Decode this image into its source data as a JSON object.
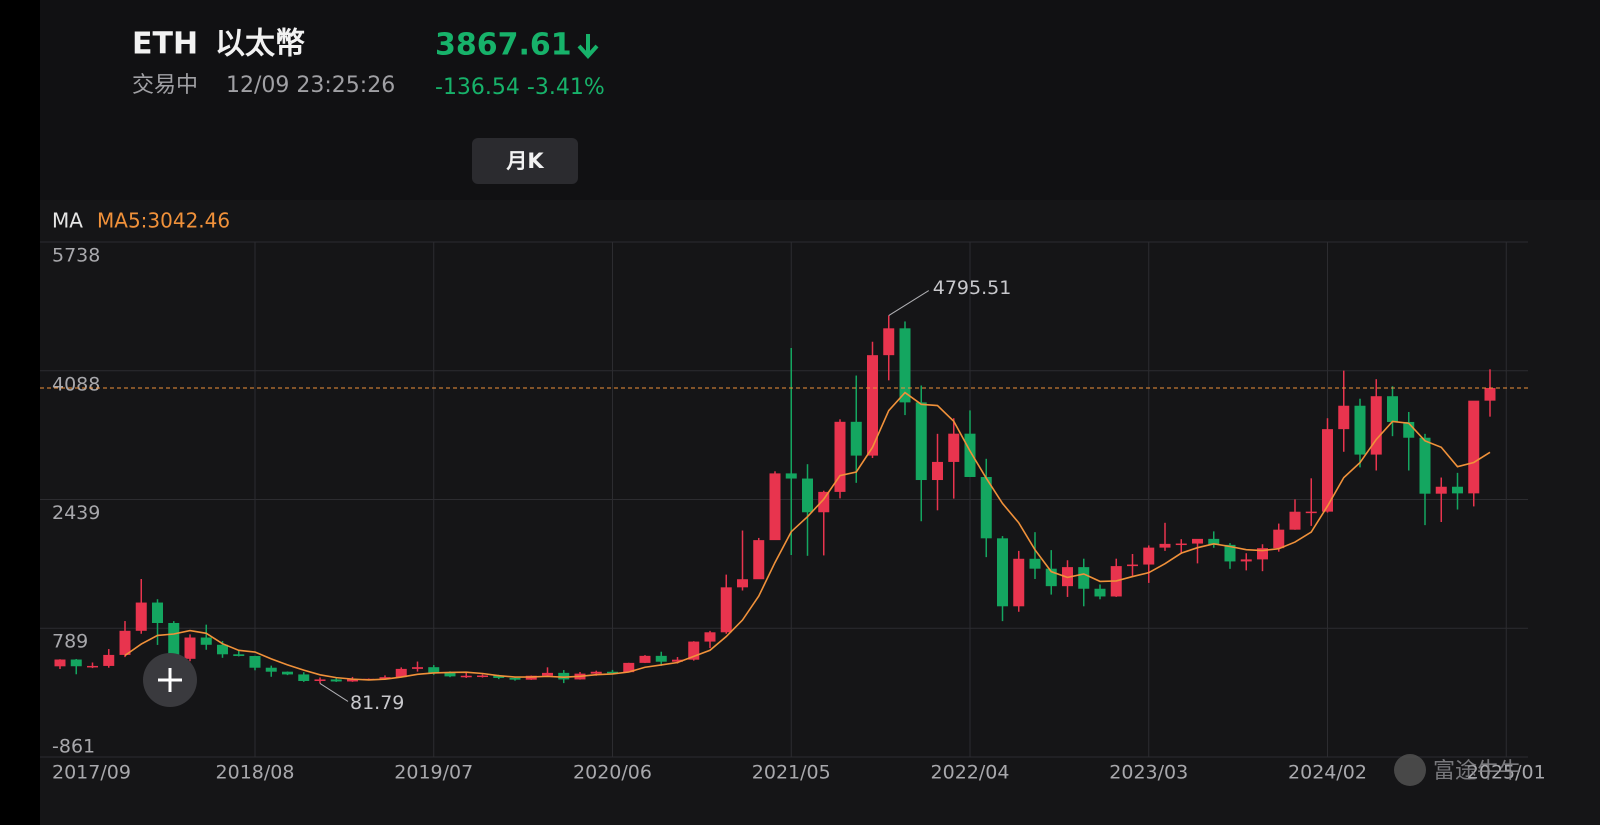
{
  "header": {
    "symbol": "ETH",
    "name": "以太幣",
    "status": "交易中",
    "time": "12/09 23:25:26",
    "change": "-136.54 -3.41%",
    "period_button": "月K",
    "watermark": "富途牛牛"
  },
  "chart_data": {
    "type": "candlestick",
    "indicator": "MA",
    "ma_legend": "MA5:3042.46",
    "up_color": "#e8344e",
    "down_color": "#14a660",
    "grid": true,
    "ylim": [
      -861,
      5738
    ],
    "yticks": [
      -861,
      789,
      2439,
      4088,
      5738
    ],
    "categories": [
      null,
      "2017/09",
      null,
      null,
      null,
      null,
      null,
      null,
      null,
      null,
      null,
      null,
      "2018/08",
      null,
      null,
      null,
      null,
      null,
      null,
      null,
      null,
      null,
      null,
      "2019/07",
      null,
      null,
      null,
      null,
      null,
      null,
      null,
      null,
      null,
      null,
      "2020/06",
      null,
      null,
      null,
      null,
      null,
      null,
      null,
      null,
      null,
      null,
      "2021/05",
      null,
      null,
      null,
      null,
      null,
      null,
      null,
      null,
      null,
      null,
      "2022/04",
      null,
      null,
      null,
      null,
      null,
      null,
      null,
      null,
      null,
      null,
      "2023/03",
      null,
      null,
      null,
      null,
      null,
      null,
      null,
      null,
      null,
      null,
      "2024/02",
      null,
      null,
      null,
      null,
      null,
      null,
      null,
      null,
      null,
      null,
      "2025/01"
    ],
    "open": [
      301,
      388,
      302,
      306,
      447,
      756,
      1118,
      856,
      397,
      670,
      577,
      455,
      433,
      283,
      232,
      197,
      113,
      133,
      107,
      136,
      141,
      162,
      268,
      290,
      218,
      172,
      180,
      183,
      152,
      130,
      180,
      217,
      133,
      207,
      231,
      226,
      345,
      435,
      360,
      386,
      618,
      737,
      1313,
      1417,
      1918,
      2773,
      2707,
      2275,
      2536,
      3434,
      3001,
      4288,
      4632,
      3683,
      2688,
      2920,
      3282,
      2727,
      1941,
      1070,
      1679,
      1552,
      1328,
      1572,
      1295,
      1196,
      1585,
      1605,
      1822,
      1870,
      1874,
      1934,
      1857,
      1645,
      1671,
      1815,
      2052,
      2282,
      2283,
      3340,
      3640,
      3014,
      3762,
      3432,
      3230,
      2513,
      2602,
      2517,
      3705,
      null
    ],
    "high": [
      392,
      395,
      350,
      522,
      881,
      1420,
      1161,
      880,
      710,
      835,
      625,
      515,
      435,
      310,
      235,
      225,
      158,
      160,
      165,
      145,
      185,
      287,
      362,
      317,
      237,
      224,
      198,
      193,
      154,
      183,
      288,
      253,
      228,
      245,
      255,
      346,
      445,
      488,
      420,
      623,
      755,
      1476,
      2041,
      1946,
      2800,
      4380,
      2891,
      2551,
      3466,
      4027,
      4460,
      4795.51,
      4720,
      3900,
      3280,
      3480,
      3580,
      2960,
      1970,
      1780,
      2020,
      1790,
      1660,
      1680,
      1350,
      1680,
      1740,
      1850,
      2140,
      1930,
      1930,
      2030,
      1880,
      1750,
      1865,
      2130,
      2440,
      2710,
      3480,
      4090,
      3730,
      3980,
      3890,
      3560,
      3280,
      2720,
      2780,
      3700,
      4107,
      null
    ],
    "low": [
      267,
      199,
      278,
      283,
      419,
      718,
      575,
      367,
      366,
      513,
      410,
      428,
      250,
      167,
      188,
      102,
      81.79,
      101,
      102,
      125,
      140,
      157,
      233,
      192,
      162,
      152,
      157,
      137,
      117,
      127,
      178,
      86,
      130,
      180,
      215,
      222,
      343,
      307,
      336,
      374,
      535,
      718,
      1272,
      1428,
      1928,
      1727,
      1717,
      1722,
      2453,
      2652,
      2970,
      3965,
      3520,
      2160,
      2300,
      2450,
      2790,
      1700,
      880,
      1000,
      1420,
      1220,
      1190,
      1070,
      1160,
      1190,
      1460,
      1370,
      1780,
      1740,
      1620,
      1820,
      1550,
      1530,
      1520,
      1770,
      2050,
      2100,
      2270,
      3050,
      2850,
      2810,
      3250,
      2810,
      2110,
      2150,
      2310,
      2350,
      3500,
      null
    ],
    "close": [
      388,
      302,
      306,
      447,
      756,
      1118,
      856,
      397,
      670,
      577,
      455,
      433,
      283,
      232,
      197,
      113,
      133,
      107,
      136,
      141,
      162,
      268,
      290,
      218,
      172,
      180,
      183,
      152,
      130,
      180,
      217,
      133,
      207,
      231,
      226,
      345,
      435,
      360,
      386,
      618,
      737,
      1313,
      1417,
      1918,
      2773,
      2707,
      2275,
      2536,
      3434,
      3001,
      4288,
      4632,
      3683,
      2688,
      2920,
      3282,
      2727,
      1941,
      1070,
      1679,
      1552,
      1328,
      1572,
      1295,
      1196,
      1585,
      1605,
      1822,
      1870,
      1874,
      1934,
      1857,
      1645,
      1671,
      1815,
      2052,
      2282,
      2283,
      3340,
      3640,
      3014,
      3762,
      3432,
      3230,
      2513,
      2602,
      2517,
      3705,
      3867.61,
      null
    ],
    "ma": {
      "name": "MA5",
      "color": "#f0913a",
      "values": [
        null,
        null,
        null,
        null,
        440,
        586,
        697,
        715,
        759,
        724,
        591,
        506,
        484,
        396,
        320,
        252,
        192,
        156,
        137,
        126,
        136,
        163,
        199,
        216,
        222,
        226,
        209,
        181,
        163,
        165,
        172,
        162,
        173,
        194,
        203,
        228,
        289,
        319,
        350,
        429,
        507,
        683,
        894,
        1201,
        1632,
        2026,
        2218,
        2442,
        2745,
        2791,
        3107,
        3578,
        3808,
        3658,
        3642,
        3441,
        3060,
        2712,
        2388,
        2140,
        1794,
        1514,
        1440,
        1485,
        1389,
        1395,
        1451,
        1501,
        1616,
        1751,
        1821,
        1871,
        1836,
        1796,
        1784,
        1808,
        1893,
        2021,
        2354,
        2719,
        2912,
        3208,
        3438,
        3416,
        3190,
        3108,
        2859,
        2913,
        3042.46,
        null
      ]
    }
  }
}
